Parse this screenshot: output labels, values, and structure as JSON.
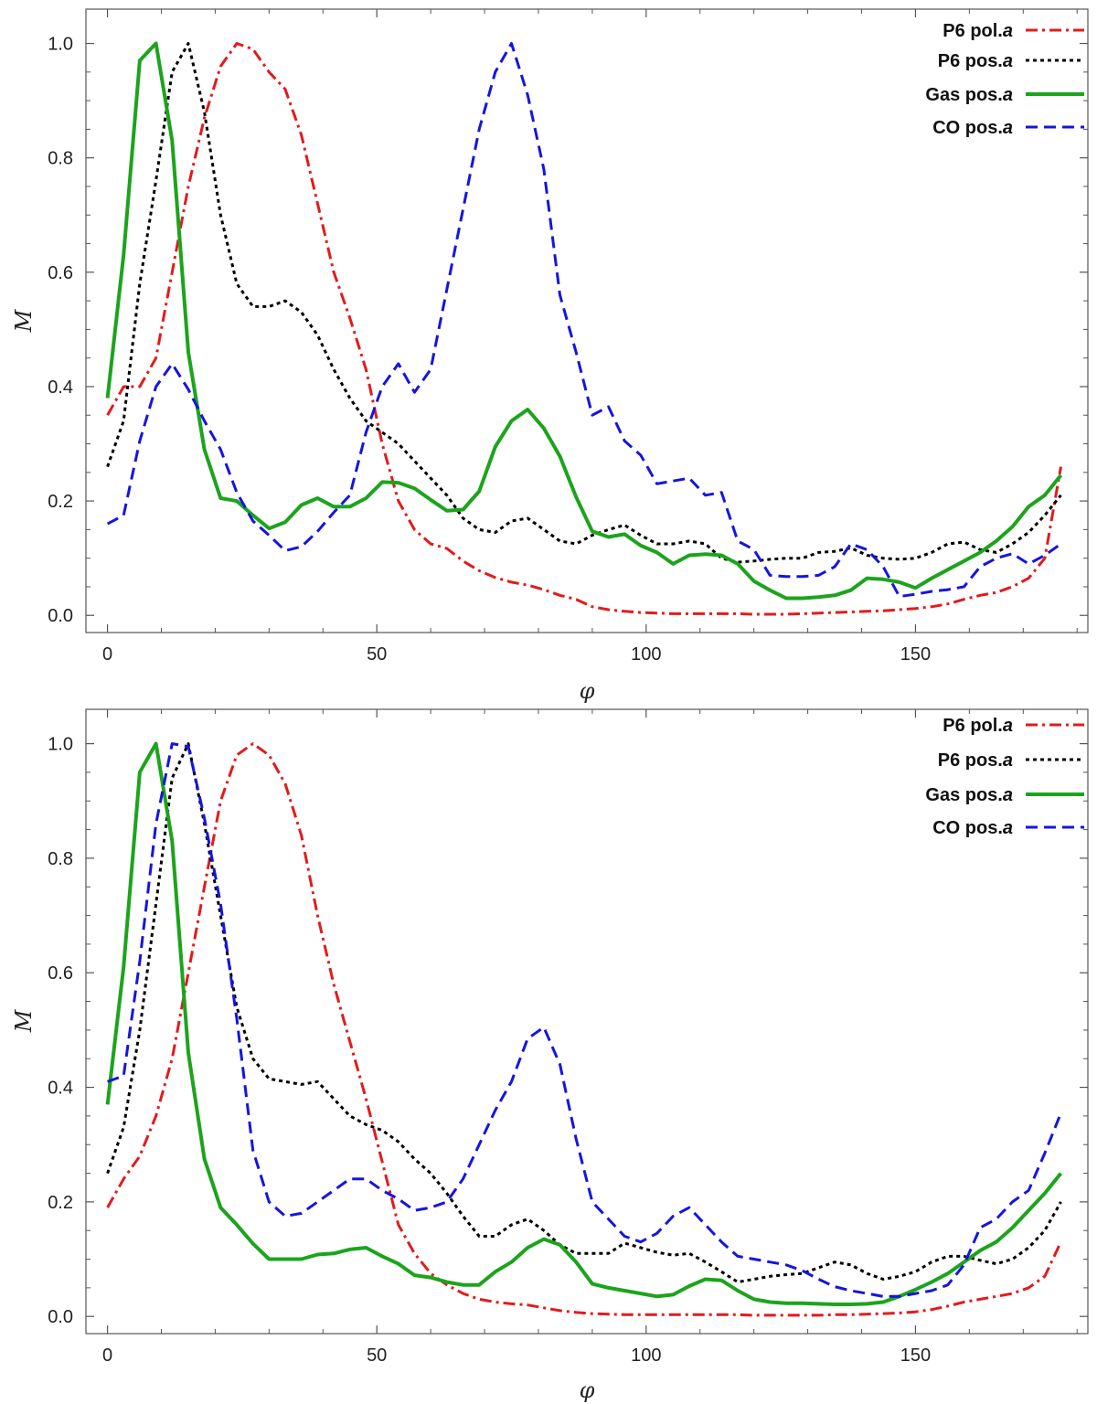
{
  "chart_data": [
    {
      "type": "line",
      "title": "",
      "xlabel": "φ",
      "ylabel": "M",
      "xlim": [
        -4,
        182
      ],
      "ylim": [
        -0.03,
        1.06
      ],
      "xticks": [
        0,
        50,
        100,
        150
      ],
      "xtick_labels": [
        "0",
        "50",
        "100",
        "150"
      ],
      "yticks": [
        0.0,
        0.2,
        0.4,
        0.6,
        0.8,
        1.0
      ],
      "ytick_labels": [
        "0.0",
        "0.2",
        "0.4",
        "0.6",
        "0.8",
        "1.0"
      ],
      "legend_position": "top-right",
      "series": [
        {
          "name": "P6 pol.",
          "suffix": "a",
          "color": "#e31a1c",
          "style": "dashdot",
          "x": [
            0,
            3,
            6,
            9,
            12,
            15,
            18,
            21,
            24,
            27,
            30,
            33,
            36,
            39,
            42,
            45,
            48,
            51,
            54,
            57,
            60,
            63,
            66,
            69,
            72,
            75,
            78,
            81,
            84,
            87,
            90,
            93,
            96,
            99,
            102,
            105,
            108,
            111,
            114,
            117,
            120,
            123,
            126,
            129,
            132,
            135,
            138,
            141,
            144,
            147,
            150,
            153,
            156,
            159,
            162,
            165,
            168,
            171,
            174,
            177
          ],
          "y": [
            0.35,
            0.4,
            0.4,
            0.45,
            0.6,
            0.75,
            0.87,
            0.96,
            1.0,
            0.99,
            0.95,
            0.92,
            0.84,
            0.72,
            0.6,
            0.52,
            0.43,
            0.3,
            0.2,
            0.15,
            0.125,
            0.117,
            0.095,
            0.078,
            0.066,
            0.058,
            0.053,
            0.045,
            0.035,
            0.028,
            0.015,
            0.01,
            0.007,
            0.005,
            0.004,
            0.003,
            0.003,
            0.003,
            0.003,
            0.003,
            0.002,
            0.002,
            0.002,
            0.003,
            0.004,
            0.005,
            0.006,
            0.007,
            0.008,
            0.01,
            0.012,
            0.015,
            0.02,
            0.028,
            0.035,
            0.04,
            0.05,
            0.065,
            0.1,
            0.26
          ]
        },
        {
          "name": "P6 pos.",
          "suffix": "a",
          "color": "#000000",
          "style": "dotted",
          "x": [
            0,
            3,
            6,
            9,
            12,
            15,
            18,
            21,
            24,
            27,
            30,
            33,
            36,
            39,
            42,
            45,
            48,
            51,
            54,
            57,
            60,
            63,
            66,
            69,
            72,
            75,
            78,
            81,
            84,
            87,
            90,
            93,
            96,
            99,
            102,
            105,
            108,
            111,
            114,
            117,
            120,
            123,
            126,
            129,
            132,
            135,
            138,
            141,
            144,
            147,
            150,
            153,
            156,
            159,
            162,
            165,
            168,
            171,
            174,
            177
          ],
          "y": [
            0.26,
            0.34,
            0.58,
            0.76,
            0.95,
            1.0,
            0.88,
            0.7,
            0.58,
            0.54,
            0.54,
            0.55,
            0.53,
            0.49,
            0.43,
            0.38,
            0.34,
            0.32,
            0.3,
            0.27,
            0.24,
            0.21,
            0.17,
            0.15,
            0.145,
            0.165,
            0.17,
            0.15,
            0.13,
            0.125,
            0.14,
            0.15,
            0.158,
            0.14,
            0.125,
            0.125,
            0.13,
            0.125,
            0.1,
            0.093,
            0.095,
            0.098,
            0.1,
            0.1,
            0.11,
            0.112,
            0.118,
            0.105,
            0.1,
            0.098,
            0.1,
            0.11,
            0.125,
            0.128,
            0.115,
            0.11,
            0.125,
            0.145,
            0.175,
            0.21
          ]
        },
        {
          "name": "Gas pos.",
          "suffix": "a",
          "color": "#1ca41c",
          "style": "solid",
          "x": [
            0,
            3,
            6,
            9,
            12,
            15,
            18,
            21,
            24,
            27,
            30,
            33,
            36,
            39,
            42,
            45,
            48,
            51,
            54,
            57,
            60,
            63,
            66,
            69,
            72,
            75,
            78,
            81,
            84,
            87,
            90,
            93,
            96,
            99,
            102,
            105,
            108,
            111,
            114,
            117,
            120,
            123,
            126,
            129,
            132,
            135,
            138,
            141,
            144,
            147,
            150,
            153,
            156,
            159,
            162,
            165,
            168,
            171,
            174,
            177
          ],
          "y": [
            0.38,
            0.63,
            0.97,
            1.0,
            0.83,
            0.46,
            0.29,
            0.205,
            0.2,
            0.175,
            0.152,
            0.163,
            0.193,
            0.205,
            0.19,
            0.19,
            0.205,
            0.233,
            0.232,
            0.222,
            0.202,
            0.183,
            0.185,
            0.217,
            0.295,
            0.34,
            0.36,
            0.327,
            0.278,
            0.207,
            0.147,
            0.137,
            0.142,
            0.122,
            0.11,
            0.09,
            0.105,
            0.107,
            0.105,
            0.09,
            0.06,
            0.044,
            0.03,
            0.03,
            0.032,
            0.035,
            0.044,
            0.065,
            0.063,
            0.058,
            0.048,
            0.065,
            0.08,
            0.095,
            0.11,
            0.13,
            0.155,
            0.19,
            0.21,
            0.245
          ]
        },
        {
          "name": "CO pos.",
          "suffix": "a",
          "color": "#1515e0",
          "style": "dashed",
          "x": [
            0,
            3,
            6,
            9,
            12,
            15,
            18,
            21,
            24,
            27,
            30,
            33,
            36,
            39,
            42,
            45,
            48,
            51,
            54,
            57,
            60,
            63,
            66,
            69,
            72,
            75,
            78,
            81,
            84,
            87,
            90,
            93,
            96,
            99,
            102,
            105,
            108,
            111,
            114,
            117,
            120,
            123,
            126,
            129,
            132,
            135,
            138,
            141,
            144,
            147,
            150,
            153,
            156,
            159,
            162,
            165,
            168,
            171,
            174,
            177
          ],
          "y": [
            0.16,
            0.175,
            0.305,
            0.4,
            0.44,
            0.395,
            0.34,
            0.29,
            0.215,
            0.165,
            0.14,
            0.113,
            0.12,
            0.147,
            0.18,
            0.21,
            0.32,
            0.4,
            0.44,
            0.39,
            0.43,
            0.57,
            0.71,
            0.85,
            0.95,
            1.0,
            0.91,
            0.78,
            0.56,
            0.46,
            0.35,
            0.365,
            0.305,
            0.28,
            0.23,
            0.235,
            0.24,
            0.21,
            0.215,
            0.13,
            0.115,
            0.07,
            0.068,
            0.068,
            0.07,
            0.085,
            0.125,
            0.115,
            0.085,
            0.033,
            0.037,
            0.042,
            0.045,
            0.05,
            0.085,
            0.1,
            0.108,
            0.09,
            0.105,
            0.125
          ]
        }
      ]
    },
    {
      "type": "line",
      "title": "",
      "xlabel": "φ",
      "ylabel": "M",
      "xlim": [
        -4,
        182
      ],
      "ylim": [
        -0.03,
        1.06
      ],
      "xticks": [
        0,
        50,
        100,
        150
      ],
      "xtick_labels": [
        "0",
        "50",
        "100",
        "150"
      ],
      "yticks": [
        0.0,
        0.2,
        0.4,
        0.6,
        0.8,
        1.0
      ],
      "ytick_labels": [
        "0.0",
        "0.2",
        "0.4",
        "0.6",
        "0.8",
        "1.0"
      ],
      "legend_position": "top-right",
      "series": [
        {
          "name": "P6 pol.",
          "suffix": "a",
          "color": "#e31a1c",
          "style": "dashdot",
          "x": [
            0,
            3,
            6,
            9,
            12,
            15,
            18,
            21,
            24,
            27,
            30,
            33,
            36,
            39,
            42,
            45,
            48,
            51,
            54,
            57,
            60,
            63,
            66,
            69,
            72,
            75,
            78,
            81,
            84,
            87,
            90,
            93,
            96,
            99,
            102,
            105,
            108,
            111,
            114,
            117,
            120,
            123,
            126,
            129,
            132,
            135,
            138,
            141,
            144,
            147,
            150,
            153,
            156,
            159,
            162,
            165,
            168,
            171,
            174,
            177
          ],
          "y": [
            0.19,
            0.24,
            0.28,
            0.35,
            0.45,
            0.6,
            0.75,
            0.9,
            0.98,
            1.0,
            0.98,
            0.93,
            0.84,
            0.7,
            0.58,
            0.48,
            0.38,
            0.27,
            0.16,
            0.11,
            0.075,
            0.055,
            0.04,
            0.03,
            0.025,
            0.022,
            0.02,
            0.015,
            0.01,
            0.007,
            0.005,
            0.004,
            0.003,
            0.003,
            0.003,
            0.003,
            0.003,
            0.003,
            0.003,
            0.003,
            0.002,
            0.002,
            0.002,
            0.002,
            0.002,
            0.003,
            0.003,
            0.004,
            0.005,
            0.006,
            0.008,
            0.012,
            0.018,
            0.025,
            0.03,
            0.035,
            0.04,
            0.05,
            0.07,
            0.13
          ]
        },
        {
          "name": "P6 pos.",
          "suffix": "a",
          "color": "#000000",
          "style": "dotted",
          "x": [
            0,
            3,
            6,
            9,
            12,
            15,
            18,
            21,
            24,
            27,
            30,
            33,
            36,
            39,
            42,
            45,
            48,
            51,
            54,
            57,
            60,
            63,
            66,
            69,
            72,
            75,
            78,
            81,
            84,
            87,
            90,
            93,
            96,
            99,
            102,
            105,
            108,
            111,
            114,
            117,
            120,
            123,
            126,
            129,
            132,
            135,
            138,
            141,
            144,
            147,
            150,
            153,
            156,
            159,
            162,
            165,
            168,
            171,
            174,
            177
          ],
          "y": [
            0.25,
            0.33,
            0.5,
            0.72,
            0.94,
            1.0,
            0.86,
            0.7,
            0.54,
            0.45,
            0.415,
            0.41,
            0.405,
            0.41,
            0.38,
            0.35,
            0.335,
            0.325,
            0.305,
            0.275,
            0.25,
            0.215,
            0.175,
            0.14,
            0.14,
            0.16,
            0.17,
            0.15,
            0.125,
            0.11,
            0.11,
            0.11,
            0.128,
            0.12,
            0.112,
            0.107,
            0.11,
            0.095,
            0.078,
            0.06,
            0.065,
            0.07,
            0.073,
            0.075,
            0.085,
            0.095,
            0.09,
            0.075,
            0.065,
            0.07,
            0.078,
            0.095,
            0.105,
            0.105,
            0.098,
            0.092,
            0.1,
            0.12,
            0.15,
            0.2
          ]
        },
        {
          "name": "Gas pos.",
          "suffix": "a",
          "color": "#1ca41c",
          "style": "solid",
          "x": [
            0,
            3,
            6,
            9,
            12,
            15,
            18,
            21,
            24,
            27,
            30,
            33,
            36,
            39,
            42,
            45,
            48,
            51,
            54,
            57,
            60,
            63,
            66,
            69,
            72,
            75,
            78,
            81,
            84,
            87,
            90,
            93,
            96,
            99,
            102,
            105,
            108,
            111,
            114,
            117,
            120,
            123,
            126,
            129,
            132,
            135,
            138,
            141,
            144,
            147,
            150,
            153,
            156,
            159,
            162,
            165,
            168,
            171,
            174,
            177
          ],
          "y": [
            0.37,
            0.61,
            0.95,
            1.0,
            0.83,
            0.46,
            0.275,
            0.19,
            0.16,
            0.127,
            0.1,
            0.1,
            0.1,
            0.108,
            0.11,
            0.117,
            0.12,
            0.105,
            0.092,
            0.072,
            0.068,
            0.06,
            0.055,
            0.055,
            0.078,
            0.095,
            0.12,
            0.135,
            0.125,
            0.095,
            0.057,
            0.05,
            0.045,
            0.04,
            0.035,
            0.038,
            0.053,
            0.065,
            0.063,
            0.045,
            0.03,
            0.025,
            0.023,
            0.023,
            0.022,
            0.021,
            0.021,
            0.022,
            0.025,
            0.035,
            0.047,
            0.06,
            0.075,
            0.095,
            0.115,
            0.13,
            0.155,
            0.185,
            0.215,
            0.25
          ]
        },
        {
          "name": "CO pos.",
          "suffix": "a",
          "color": "#1515e0",
          "style": "dashed",
          "x": [
            0,
            3,
            6,
            9,
            12,
            15,
            18,
            21,
            24,
            27,
            30,
            33,
            36,
            39,
            42,
            45,
            48,
            51,
            54,
            57,
            60,
            63,
            66,
            69,
            72,
            75,
            78,
            81,
            84,
            87,
            90,
            93,
            96,
            99,
            102,
            105,
            108,
            111,
            114,
            117,
            120,
            123,
            126,
            129,
            132,
            135,
            138,
            141,
            144,
            147,
            150,
            153,
            156,
            159,
            162,
            165,
            168,
            171,
            174,
            177
          ],
          "y": [
            0.41,
            0.42,
            0.62,
            0.86,
            1.0,
            0.995,
            0.87,
            0.72,
            0.52,
            0.29,
            0.2,
            0.175,
            0.18,
            0.2,
            0.22,
            0.24,
            0.24,
            0.22,
            0.205,
            0.185,
            0.19,
            0.2,
            0.24,
            0.3,
            0.36,
            0.41,
            0.485,
            0.505,
            0.44,
            0.31,
            0.2,
            0.17,
            0.14,
            0.13,
            0.145,
            0.175,
            0.19,
            0.16,
            0.13,
            0.105,
            0.1,
            0.095,
            0.09,
            0.08,
            0.065,
            0.052,
            0.045,
            0.04,
            0.035,
            0.035,
            0.04,
            0.045,
            0.055,
            0.09,
            0.155,
            0.17,
            0.2,
            0.22,
            0.285,
            0.355
          ]
        }
      ]
    }
  ]
}
